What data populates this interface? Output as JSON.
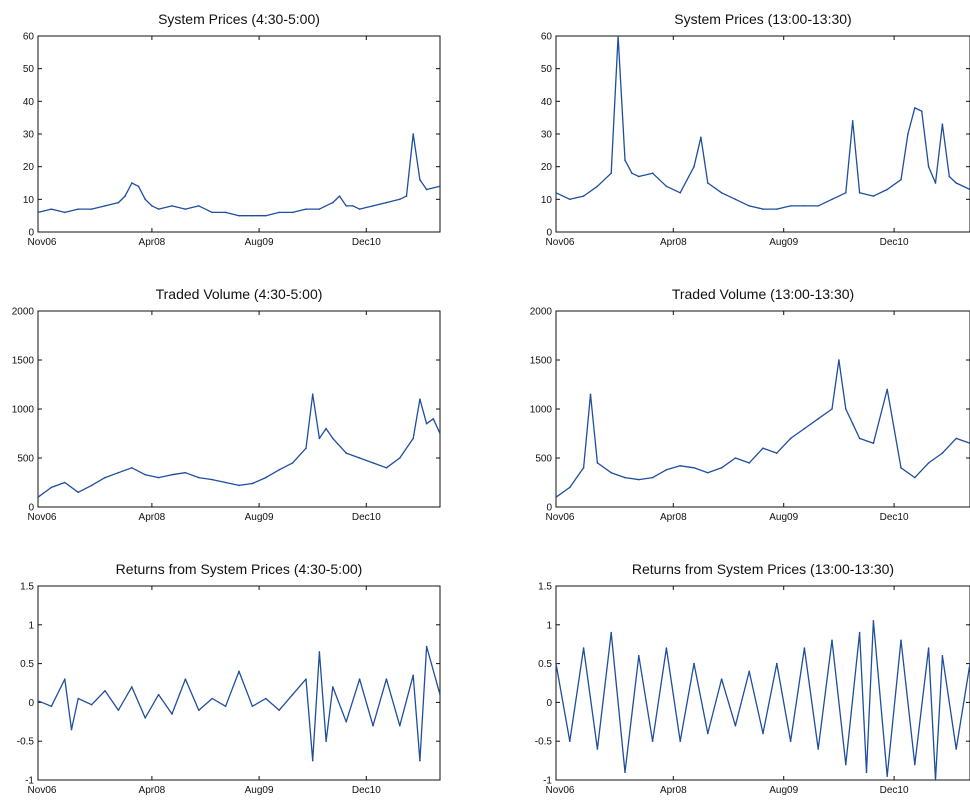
{
  "chart_data": [
    {
      "type": "line",
      "title": "System Prices (4:30-5:00)",
      "xlabel": "",
      "ylabel": "",
      "xlim": [
        0,
        60
      ],
      "ylim": [
        0,
        60
      ],
      "x_tick_labels": [
        {
          "label": "Nov06",
          "x": 0
        },
        {
          "label": "Apr08",
          "x": 17
        },
        {
          "label": "Aug09",
          "x": 33
        },
        {
          "label": "Dec10",
          "x": 49
        }
      ],
      "y_ticks": [
        {
          "label": "0",
          "v": 0
        },
        {
          "label": "10",
          "v": 10
        },
        {
          "label": "20",
          "v": 20
        },
        {
          "label": "30",
          "v": 30
        },
        {
          "label": "40",
          "v": 40
        },
        {
          "label": "50",
          "v": 50
        },
        {
          "label": "60",
          "v": 60
        }
      ],
      "grid": false,
      "series": [
        {
          "color": "#1f4e9e",
          "x": [
            0,
            2,
            4,
            6,
            8,
            10,
            12,
            13,
            14,
            15,
            16,
            17,
            18,
            20,
            22,
            24,
            26,
            28,
            30,
            32,
            34,
            36,
            38,
            40,
            42,
            44,
            45,
            46,
            47,
            48,
            50,
            52,
            54,
            55,
            56,
            57,
            58,
            60
          ],
          "y": [
            6,
            7,
            6,
            7,
            7,
            8,
            9,
            11,
            15,
            14,
            10,
            8,
            7,
            8,
            7,
            8,
            6,
            6,
            5,
            5,
            5,
            6,
            6,
            7,
            7,
            9,
            11,
            8,
            8,
            7,
            8,
            9,
            10,
            11,
            30,
            16,
            13,
            14
          ]
        }
      ]
    },
    {
      "type": "line",
      "title": "System Prices (13:00-13:30)",
      "xlabel": "",
      "ylabel": "",
      "xlim": [
        0,
        60
      ],
      "ylim": [
        0,
        60
      ],
      "x_tick_labels": [
        {
          "label": "Nov06",
          "x": 0
        },
        {
          "label": "Apr08",
          "x": 17
        },
        {
          "label": "Aug09",
          "x": 33
        },
        {
          "label": "Dec10",
          "x": 49
        }
      ],
      "y_ticks": [
        {
          "label": "0",
          "v": 0
        },
        {
          "label": "10",
          "v": 10
        },
        {
          "label": "20",
          "v": 20
        },
        {
          "label": "30",
          "v": 30
        },
        {
          "label": "40",
          "v": 40
        },
        {
          "label": "50",
          "v": 50
        },
        {
          "label": "60",
          "v": 60
        }
      ],
      "grid": false,
      "series": [
        {
          "color": "#1f4e9e",
          "x": [
            0,
            2,
            4,
            6,
            8,
            9,
            10,
            11,
            12,
            14,
            16,
            18,
            20,
            21,
            22,
            24,
            26,
            28,
            30,
            32,
            34,
            36,
            38,
            40,
            42,
            43,
            44,
            46,
            48,
            50,
            51,
            52,
            53,
            54,
            55,
            56,
            57,
            58,
            60
          ],
          "y": [
            12,
            10,
            11,
            14,
            18,
            60,
            22,
            18,
            17,
            18,
            14,
            12,
            20,
            29,
            15,
            12,
            10,
            8,
            7,
            7,
            8,
            8,
            8,
            10,
            12,
            34,
            12,
            11,
            13,
            16,
            30,
            38,
            37,
            20,
            15,
            33,
            17,
            15,
            13
          ]
        }
      ]
    },
    {
      "type": "line",
      "title": "Traded Volume (4:30-5:00)",
      "xlabel": "",
      "ylabel": "",
      "xlim": [
        0,
        60
      ],
      "ylim": [
        0,
        2000
      ],
      "x_tick_labels": [
        {
          "label": "Nov06",
          "x": 0
        },
        {
          "label": "Apr08",
          "x": 17
        },
        {
          "label": "Aug09",
          "x": 33
        },
        {
          "label": "Dec10",
          "x": 49
        }
      ],
      "y_ticks": [
        {
          "label": "0",
          "v": 0
        },
        {
          "label": "500",
          "v": 500
        },
        {
          "label": "1000",
          "v": 1000
        },
        {
          "label": "1500",
          "v": 1500
        },
        {
          "label": "2000",
          "v": 2000
        }
      ],
      "grid": false,
      "series": [
        {
          "color": "#1f4e9e",
          "x": [
            0,
            2,
            4,
            6,
            8,
            10,
            12,
            14,
            16,
            18,
            20,
            22,
            24,
            26,
            28,
            30,
            32,
            34,
            36,
            38,
            40,
            41,
            42,
            43,
            44,
            46,
            48,
            50,
            52,
            54,
            56,
            57,
            58,
            59,
            60
          ],
          "y": [
            100,
            200,
            250,
            150,
            220,
            300,
            350,
            400,
            330,
            300,
            330,
            350,
            300,
            280,
            250,
            220,
            240,
            300,
            380,
            450,
            600,
            1150,
            700,
            800,
            700,
            550,
            500,
            450,
            400,
            500,
            700,
            1100,
            850,
            900,
            750
          ]
        }
      ]
    },
    {
      "type": "line",
      "title": "Traded Volume (13:00-13:30)",
      "xlabel": "",
      "ylabel": "",
      "xlim": [
        0,
        60
      ],
      "ylim": [
        0,
        2000
      ],
      "x_tick_labels": [
        {
          "label": "Nov06",
          "x": 0
        },
        {
          "label": "Apr08",
          "x": 17
        },
        {
          "label": "Aug09",
          "x": 33
        },
        {
          "label": "Dec10",
          "x": 49
        }
      ],
      "y_ticks": [
        {
          "label": "0",
          "v": 0
        },
        {
          "label": "500",
          "v": 500
        },
        {
          "label": "1000",
          "v": 1000
        },
        {
          "label": "1500",
          "v": 1500
        },
        {
          "label": "2000",
          "v": 2000
        }
      ],
      "grid": false,
      "series": [
        {
          "color": "#1f4e9e",
          "x": [
            0,
            2,
            4,
            5,
            6,
            8,
            10,
            12,
            14,
            16,
            18,
            20,
            22,
            24,
            26,
            28,
            30,
            32,
            34,
            36,
            38,
            40,
            41,
            42,
            43,
            44,
            46,
            48,
            50,
            52,
            54,
            56,
            58,
            60
          ],
          "y": [
            100,
            200,
            400,
            1150,
            450,
            350,
            300,
            280,
            300,
            380,
            420,
            400,
            350,
            400,
            500,
            450,
            600,
            550,
            700,
            800,
            900,
            1000,
            1500,
            1000,
            850,
            700,
            650,
            1200,
            400,
            300,
            450,
            550,
            700,
            650
          ]
        }
      ]
    },
    {
      "type": "line",
      "title": "Returns from System Prices (4:30-5:00)",
      "xlabel": "",
      "ylabel": "",
      "xlim": [
        0,
        60
      ],
      "ylim": [
        -1,
        1.5
      ],
      "x_tick_labels": [
        {
          "label": "Nov06",
          "x": 0
        },
        {
          "label": "Apr08",
          "x": 17
        },
        {
          "label": "Aug09",
          "x": 33
        },
        {
          "label": "Dec10",
          "x": 49
        }
      ],
      "y_ticks": [
        {
          "label": "-1",
          "v": -1
        },
        {
          "label": "-0.5",
          "v": -0.5
        },
        {
          "label": "0",
          "v": 0
        },
        {
          "label": "0.5",
          "v": 0.5
        },
        {
          "label": "1",
          "v": 1
        },
        {
          "label": "1.5",
          "v": 1.5
        }
      ],
      "grid": false,
      "series": [
        {
          "color": "#1f4e9e",
          "x": [
            0,
            2,
            4,
            5,
            6,
            8,
            10,
            12,
            14,
            16,
            18,
            20,
            22,
            24,
            26,
            28,
            30,
            32,
            34,
            36,
            38,
            40,
            41,
            42,
            43,
            44,
            46,
            48,
            50,
            52,
            54,
            56,
            57,
            58,
            60
          ],
          "y": [
            0.02,
            -0.05,
            0.3,
            -0.35,
            0.05,
            -0.03,
            0.15,
            -0.1,
            0.2,
            -0.2,
            0.1,
            -0.15,
            0.3,
            -0.1,
            0.05,
            -0.05,
            0.4,
            -0.05,
            0.05,
            -0.1,
            0.1,
            0.3,
            -0.75,
            0.65,
            -0.5,
            0.2,
            -0.25,
            0.3,
            -0.3,
            0.3,
            -0.3,
            0.35,
            -0.75,
            0.72,
            0.1
          ]
        }
      ]
    },
    {
      "type": "line",
      "title": "Returns from System Prices (13:00-13:30)",
      "xlabel": "",
      "ylabel": "",
      "xlim": [
        0,
        60
      ],
      "ylim": [
        -1,
        1.5
      ],
      "x_tick_labels": [
        {
          "label": "Nov06",
          "x": 0
        },
        {
          "label": "Apr08",
          "x": 17
        },
        {
          "label": "Aug09",
          "x": 33
        },
        {
          "label": "Dec10",
          "x": 49
        }
      ],
      "y_ticks": [
        {
          "label": "-1",
          "v": -1
        },
        {
          "label": "-0.5",
          "v": -0.5
        },
        {
          "label": "0",
          "v": 0
        },
        {
          "label": "0.5",
          "v": 0.5
        },
        {
          "label": "1",
          "v": 1
        },
        {
          "label": "1.5",
          "v": 1.5
        }
      ],
      "grid": false,
      "series": [
        {
          "color": "#1f4e9e",
          "x": [
            0,
            2,
            4,
            6,
            8,
            10,
            12,
            14,
            16,
            18,
            20,
            22,
            24,
            26,
            28,
            30,
            32,
            34,
            36,
            38,
            40,
            42,
            44,
            45,
            46,
            48,
            50,
            52,
            54,
            55,
            56,
            58,
            60
          ],
          "y": [
            0.5,
            -0.5,
            0.7,
            -0.6,
            0.9,
            -0.9,
            0.6,
            -0.5,
            0.7,
            -0.5,
            0.5,
            -0.4,
            0.3,
            -0.3,
            0.4,
            -0.4,
            0.5,
            -0.5,
            0.7,
            -0.6,
            0.8,
            -0.8,
            0.9,
            -0.9,
            1.05,
            -0.95,
            0.8,
            -0.8,
            0.7,
            -1.0,
            0.6,
            -0.6,
            0.5
          ]
        }
      ]
    }
  ]
}
